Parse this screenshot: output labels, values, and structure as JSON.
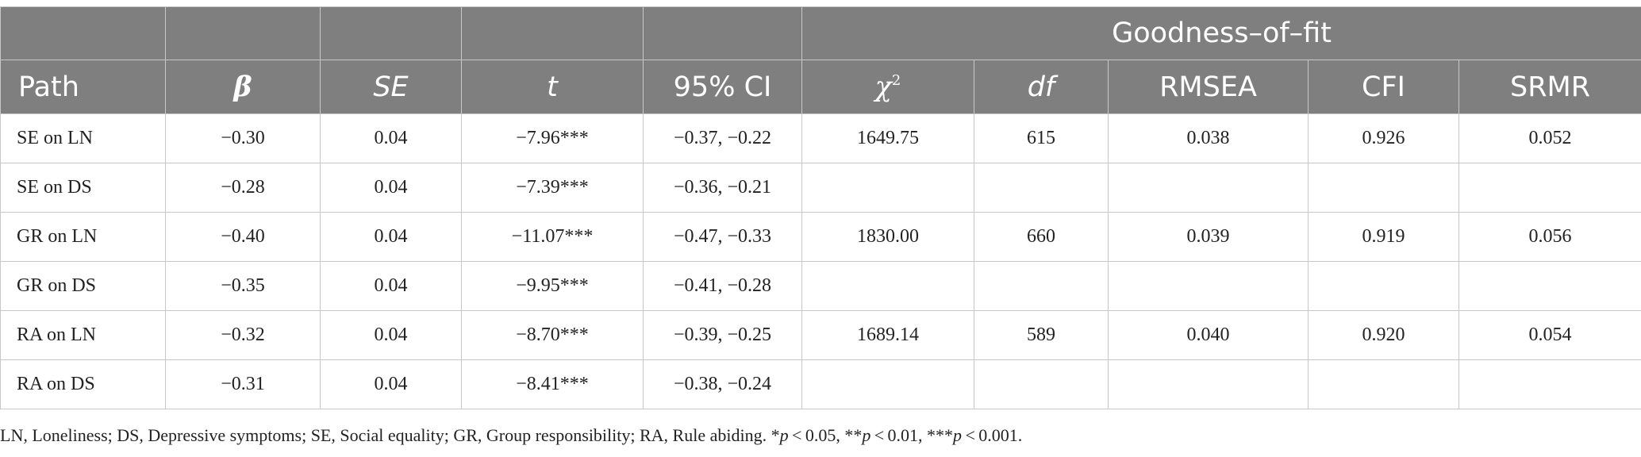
{
  "header": {
    "group_label": "Goodness–of–fit",
    "columns": [
      "Path",
      "β",
      "SE",
      "t",
      "95% CI",
      "χ",
      "df",
      "RMSEA",
      "CFI",
      "SRMR"
    ],
    "chi_sup": "2"
  },
  "rows": [
    [
      "SE on LN",
      "−0.30",
      "0.04",
      "−7.96***",
      "−0.37, −0.22",
      "1649.75",
      "615",
      "0.038",
      "0.926",
      "0.052"
    ],
    [
      "SE on DS",
      "−0.28",
      "0.04",
      "−7.39***",
      "−0.36, −0.21",
      "",
      "",
      "",
      "",
      ""
    ],
    [
      "GR on LN",
      "−0.40",
      "0.04",
      "−11.07***",
      "−0.47, −0.33",
      "1830.00",
      "660",
      "0.039",
      "0.919",
      "0.056"
    ],
    [
      "GR on DS",
      "−0.35",
      "0.04",
      "−9.95***",
      "−0.41, −0.28",
      "",
      "",
      "",
      "",
      ""
    ],
    [
      "RA on LN",
      "−0.32",
      "0.04",
      "−8.70***",
      "−0.39, −0.25",
      "1689.14",
      "589",
      "0.040",
      "0.920",
      "0.054"
    ],
    [
      "RA on DS",
      "−0.31",
      "0.04",
      "−8.41***",
      "−0.38, −0.24",
      "",
      "",
      "",
      "",
      ""
    ]
  ],
  "footnote": {
    "text": "LN, Loneliness; DS, Depressive symptoms; SE, Social equality; GR, Group responsibility; RA, Rule abiding. *",
    "p1": "p",
    "t1": " < 0.05, **",
    "p2": "p",
    "t2": " < 0.01, ***",
    "p3": "p",
    "t3": " < 0.001."
  },
  "colors": {
    "header_bg": "#7f7f7f",
    "header_text": "#ffffff",
    "border": "#c7c7c7"
  }
}
